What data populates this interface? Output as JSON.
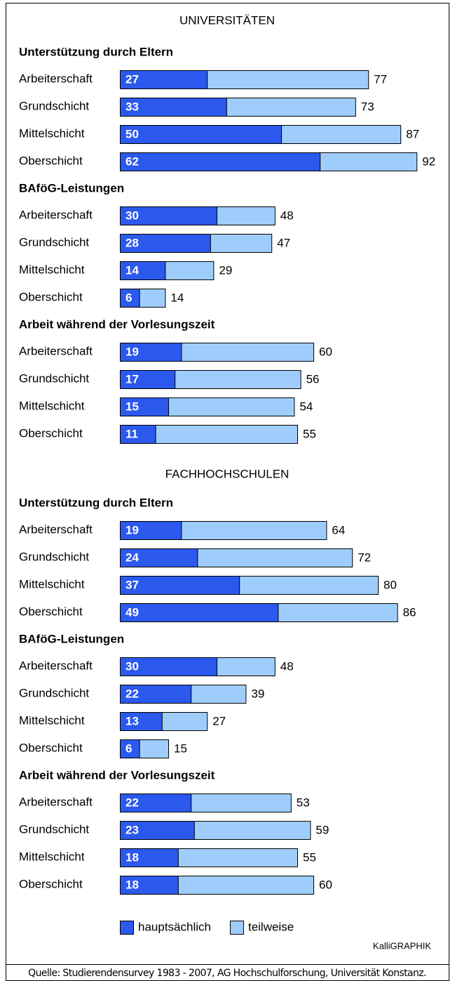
{
  "legend": [
    {
      "name": "hauptsächlich",
      "color": "#2b59ee"
    },
    {
      "name": "teilweise",
      "color": "#9fcdfb"
    }
  ],
  "credit": "KalliGRAPHIK",
  "source": "Quelle: Studierendensurvey 1983 - 2007, AG Hochschulforschung, Universität Konstanz.",
  "chart_data": [
    {
      "type": "bar",
      "section": "UNIVERSITÄTEN",
      "title": "Unterstützung durch Eltern",
      "categories": [
        "Arbeiterschaft",
        "Grundschicht",
        "Mittelschicht",
        "Oberschicht"
      ],
      "series": [
        {
          "values": [
            27,
            33,
            50,
            62
          ]
        },
        {
          "values": [
            77,
            73,
            87,
            92
          ]
        }
      ]
    },
    {
      "type": "bar",
      "title": "BAföG-Leistungen",
      "categories": [
        "Arbeiterschaft",
        "Grundschicht",
        "Mittelschicht",
        "Oberschicht"
      ],
      "series": [
        {
          "values": [
            30,
            28,
            14,
            6
          ]
        },
        {
          "values": [
            48,
            47,
            29,
            14
          ]
        }
      ]
    },
    {
      "type": "bar",
      "title": "Arbeit während der Vorlesungszeit",
      "categories": [
        "Arbeiterschaft",
        "Grundschicht",
        "Mittelschicht",
        "Oberschicht"
      ],
      "series": [
        {
          "values": [
            19,
            17,
            15,
            11
          ]
        },
        {
          "values": [
            60,
            56,
            54,
            55
          ]
        }
      ]
    },
    {
      "type": "bar",
      "section": "FACHHOCHSCHULEN",
      "title": "Unterstützung durch Eltern",
      "categories": [
        "Arbeiterschaft",
        "Grundschicht",
        "Mittelschicht",
        "Oberschicht"
      ],
      "series": [
        {
          "values": [
            19,
            24,
            37,
            49
          ]
        },
        {
          "values": [
            64,
            72,
            80,
            86
          ]
        }
      ]
    },
    {
      "type": "bar",
      "title": "BAföG-Leistungen",
      "categories": [
        "Arbeiterschaft",
        "Grundschicht",
        "Mittelschicht",
        "Oberschicht"
      ],
      "series": [
        {
          "values": [
            30,
            22,
            13,
            6
          ]
        },
        {
          "values": [
            48,
            39,
            27,
            15
          ]
        }
      ]
    },
    {
      "type": "bar",
      "title": "Arbeit während der Vorlesungszeit",
      "categories": [
        "Arbeiterschaft",
        "Grundschicht",
        "Mittelschicht",
        "Oberschicht"
      ],
      "series": [
        {
          "values": [
            22,
            23,
            18,
            18
          ]
        },
        {
          "values": [
            53,
            59,
            55,
            60
          ]
        }
      ]
    }
  ]
}
